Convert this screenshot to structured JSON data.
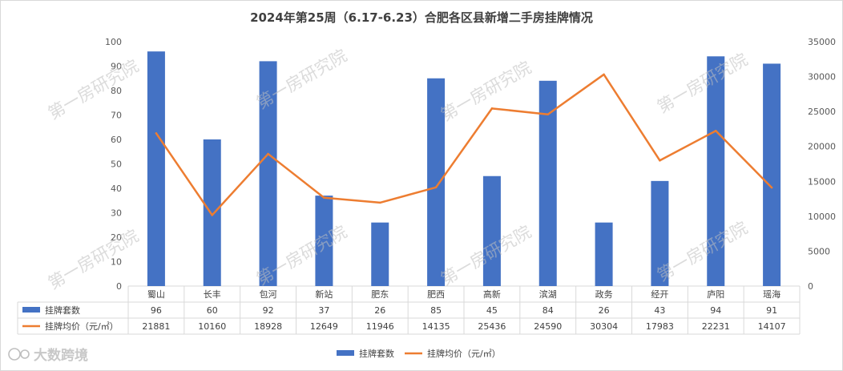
{
  "chart_data": {
    "type": "bar",
    "title": "2024年第25周（6.17-6.23）合肥各区县新增二手房挂牌情况",
    "categories": [
      "蜀山",
      "长丰",
      "包河",
      "新站",
      "肥东",
      "肥西",
      "高新",
      "滨湖",
      "政务",
      "经开",
      "庐阳",
      "瑶海"
    ],
    "series": [
      {
        "name": "挂牌套数",
        "type": "bar",
        "axis": "left",
        "color": "#4472c4",
        "values": [
          96,
          60,
          92,
          37,
          26,
          85,
          45,
          84,
          26,
          43,
          94,
          91
        ]
      },
      {
        "name": "挂牌均价（元/㎡）",
        "type": "line",
        "axis": "right",
        "color": "#ed7d31",
        "values": [
          21881,
          10160,
          18928,
          12649,
          11946,
          14135,
          25436,
          24590,
          30304,
          17983,
          22231,
          14107
        ]
      }
    ],
    "y_left": {
      "min": 0,
      "max": 100,
      "ticks": [
        "0",
        "10",
        "20",
        "30",
        "40",
        "50",
        "60",
        "70",
        "80",
        "90",
        "100"
      ]
    },
    "y_right": {
      "min": 0,
      "max": 35000,
      "ticks": [
        "0",
        "5000",
        "10000",
        "15000",
        "20000",
        "25000",
        "30000",
        "35000"
      ]
    },
    "grid": false,
    "data_table": true,
    "legend_position": "bottom"
  },
  "watermark": {
    "text": "第一房研究院"
  },
  "brand": {
    "text": "大数跨境"
  },
  "colors": {
    "grid": "#d9d9d9",
    "axis_text": "#595959"
  }
}
